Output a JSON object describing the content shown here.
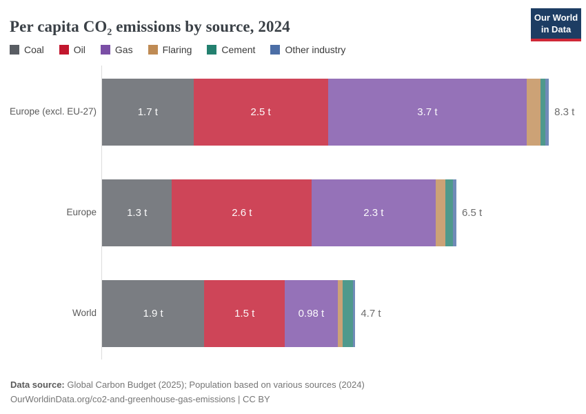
{
  "header": {
    "title": "Per capita CO₂ emissions by source, 2024",
    "logo": {
      "line1": "Our World",
      "line2": "in Data"
    }
  },
  "colors": {
    "coal": "#595d63",
    "oil": "#c2172e",
    "gas": "#7b4fa6",
    "flaring": "#bf8b54",
    "cement": "#23806f",
    "other_industry": "#4c6ea6",
    "axis_line": "#dcdcdc",
    "logo_bg": "#1d3d63",
    "logo_stripe": "#cf2837"
  },
  "chart_data": {
    "type": "bar",
    "orientation": "horizontal-stacked",
    "title": "Per capita CO₂ emissions by source, 2024",
    "unit": "tonnes of CO₂ per person",
    "value_suffix": " t",
    "xlim": [
      0,
      8.3
    ],
    "grid": false,
    "legend_position": "top",
    "series": [
      {
        "name": "Coal",
        "color": "#595d63"
      },
      {
        "name": "Oil",
        "color": "#c2172e"
      },
      {
        "name": "Gas",
        "color": "#7b4fa6"
      },
      {
        "name": "Flaring",
        "color": "#bf8b54"
      },
      {
        "name": "Cement",
        "color": "#23806f"
      },
      {
        "name": "Other industry",
        "color": "#4c6ea6"
      }
    ],
    "categories": [
      "Europe (excl. EU-27)",
      "Europe",
      "World"
    ],
    "rows": [
      {
        "category": "Europe (excl. EU-27)",
        "total": 8.3,
        "total_label": "8.3 t",
        "segments": [
          {
            "name": "Coal",
            "value": 1.7,
            "label": "1.7 t"
          },
          {
            "name": "Oil",
            "value": 2.5,
            "label": "2.5 t"
          },
          {
            "name": "Gas",
            "value": 3.7,
            "label": "3.7 t"
          },
          {
            "name": "Flaring",
            "value": 0.25,
            "label": ""
          },
          {
            "name": "Cement",
            "value": 0.1,
            "label": ""
          },
          {
            "name": "Other industry",
            "value": 0.06,
            "label": ""
          }
        ]
      },
      {
        "category": "Europe",
        "total": 6.5,
        "total_label": "6.5 t",
        "segments": [
          {
            "name": "Coal",
            "value": 1.3,
            "label": "1.3 t"
          },
          {
            "name": "Oil",
            "value": 2.6,
            "label": "2.6 t"
          },
          {
            "name": "Gas",
            "value": 2.3,
            "label": "2.3 t"
          },
          {
            "name": "Flaring",
            "value": 0.19,
            "label": ""
          },
          {
            "name": "Cement",
            "value": 0.14,
            "label": ""
          },
          {
            "name": "Other industry",
            "value": 0.06,
            "label": ""
          }
        ]
      },
      {
        "category": "World",
        "total": 4.7,
        "total_label": "4.7 t",
        "segments": [
          {
            "name": "Coal",
            "value": 1.9,
            "label": "1.9 t"
          },
          {
            "name": "Oil",
            "value": 1.5,
            "label": "1.5 t"
          },
          {
            "name": "Gas",
            "value": 0.98,
            "label": "0.98 t"
          },
          {
            "name": "Flaring",
            "value": 0.09,
            "label": ""
          },
          {
            "name": "Cement",
            "value": 0.2,
            "label": ""
          },
          {
            "name": "Other industry",
            "value": 0.04,
            "label": ""
          }
        ]
      }
    ]
  },
  "footer": {
    "source_label": "Data source:",
    "source_text": " Global Carbon Budget (2025); Population based on various sources (2024)",
    "link_line": "OurWorldinData.org/co2-and-greenhouse-gas-emissions | CC BY"
  }
}
